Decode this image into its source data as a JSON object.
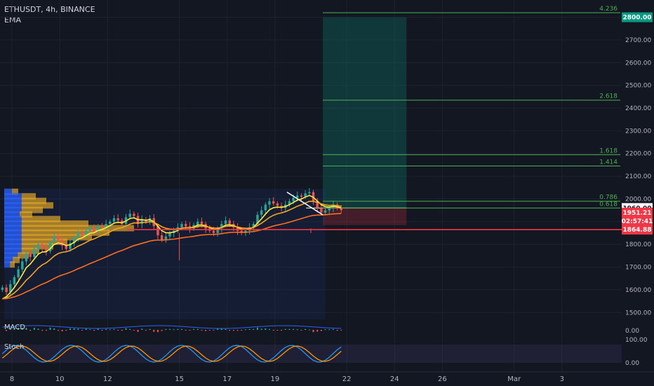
{
  "header": {
    "symbol_line": "ETHUSDT, 4h, BINANCE",
    "indicator": "EMA"
  },
  "panes": {
    "macd": "MACD",
    "stoch": "Stoch"
  },
  "colors": {
    "bg": "#131722",
    "grid": "#1e222d",
    "up": "#26a69a",
    "down": "#ef5350",
    "ema_fast": "#ffeb3b",
    "ema_mid": "#f5a623",
    "ema_slow": "#ff6d1f",
    "fib": "#4caf50",
    "support": "#f23645",
    "stoch_k": "#2196f3",
    "stoch_d": "#ff9800"
  },
  "chart_data": {
    "type": "candlestick",
    "symbol": "ETHUSDT",
    "interval": "4h",
    "exchange": "BINANCE",
    "y_ticks": [
      1500,
      1600,
      1700,
      1800,
      1900,
      2000,
      2100,
      2200,
      2300,
      2400,
      2500,
      2600,
      2700,
      2800
    ],
    "y_tick_labels": [
      "1500.00",
      "1600.00",
      "1700.00",
      "1800.00",
      "1900.00",
      "2000.00",
      "2100.00",
      "2200.00",
      "2300.00",
      "2400.00",
      "2500.00",
      "2600.00",
      "2700.00",
      "2800.00"
    ],
    "x_ticks": [
      {
        "label": "8",
        "day": 8
      },
      {
        "label": "10",
        "day": 10
      },
      {
        "label": "12",
        "day": 12
      },
      {
        "label": "15",
        "day": 15
      },
      {
        "label": "17",
        "day": 17
      },
      {
        "label": "19",
        "day": 19
      },
      {
        "label": "22",
        "day": 22
      },
      {
        "label": "24",
        "day": 24
      },
      {
        "label": "26",
        "day": 26
      },
      {
        "label": "Mar",
        "day": 29
      },
      {
        "label": "3",
        "day": 31
      }
    ],
    "fib_levels": [
      {
        "label": "0.618",
        "price": 1960
      },
      {
        "label": "0.786",
        "price": 1990
      },
      {
        "label": "1.414",
        "price": 2145
      },
      {
        "label": "1.618",
        "price": 2195
      },
      {
        "label": "2.618",
        "price": 2435
      },
      {
        "label": "4.236",
        "price": 2820
      }
    ],
    "price_badges": [
      {
        "text": "2800.00",
        "price": 2800,
        "bg": "#089981",
        "fg": "#ffffff"
      },
      {
        "text": "1960.00",
        "price": 1960,
        "bg": "#ffffff",
        "fg": "#131722"
      },
      {
        "text": "1951.21",
        "price": 1940,
        "bg": "#f23645",
        "fg": "#ffffff"
      },
      {
        "text": "02:57:41",
        "price": 1903,
        "bg": "#f23645",
        "fg": "#ffffff"
      },
      {
        "text": "1864.88",
        "price": 1864.88,
        "bg": "#f23645",
        "fg": "#ffffff"
      }
    ],
    "support_level": 1864.88,
    "position": {
      "entry": 1960,
      "target": 2800,
      "stop": 1885,
      "start_day": 21.0,
      "end_day": 24.5
    },
    "volume_profile_range": [
      1470,
      2045
    ],
    "macd_tick": "0.00",
    "stoch_ticks": [
      "100.00",
      "0.00"
    ],
    "ohlc_series": "approximate 4h candles, Feb 7 – Feb 21",
    "closes": [
      1610,
      1590,
      1625,
      1655,
      1690,
      1725,
      1760,
      1745,
      1780,
      1800,
      1785,
      1770,
      1810,
      1835,
      1820,
      1795,
      1780,
      1805,
      1830,
      1850,
      1840,
      1860,
      1870,
      1855,
      1880,
      1875,
      1890,
      1900,
      1915,
      1905,
      1890,
      1920,
      1935,
      1925,
      1890,
      1910,
      1900,
      1915,
      1880,
      1840,
      1820,
      1835,
      1850,
      1860,
      1875,
      1890,
      1880,
      1870,
      1885,
      1900,
      1890,
      1870,
      1860,
      1850,
      1870,
      1890,
      1905,
      1890,
      1875,
      1860,
      1850,
      1860,
      1875,
      1890,
      1930,
      1950,
      1975,
      1990,
      1980,
      1970,
      1960,
      1975,
      1990,
      2005,
      2015,
      2010,
      2025,
      2030,
      1990,
      1960,
      1940,
      1950,
      1960,
      1975,
      1960,
      1951.21
    ],
    "start_day": 7.0,
    "candle_step_days": 0.1667,
    "dip_wicks": [
      {
        "day": 15.0,
        "low": 1730
      },
      {
        "day": 20.5,
        "low": 1870
      }
    ]
  }
}
